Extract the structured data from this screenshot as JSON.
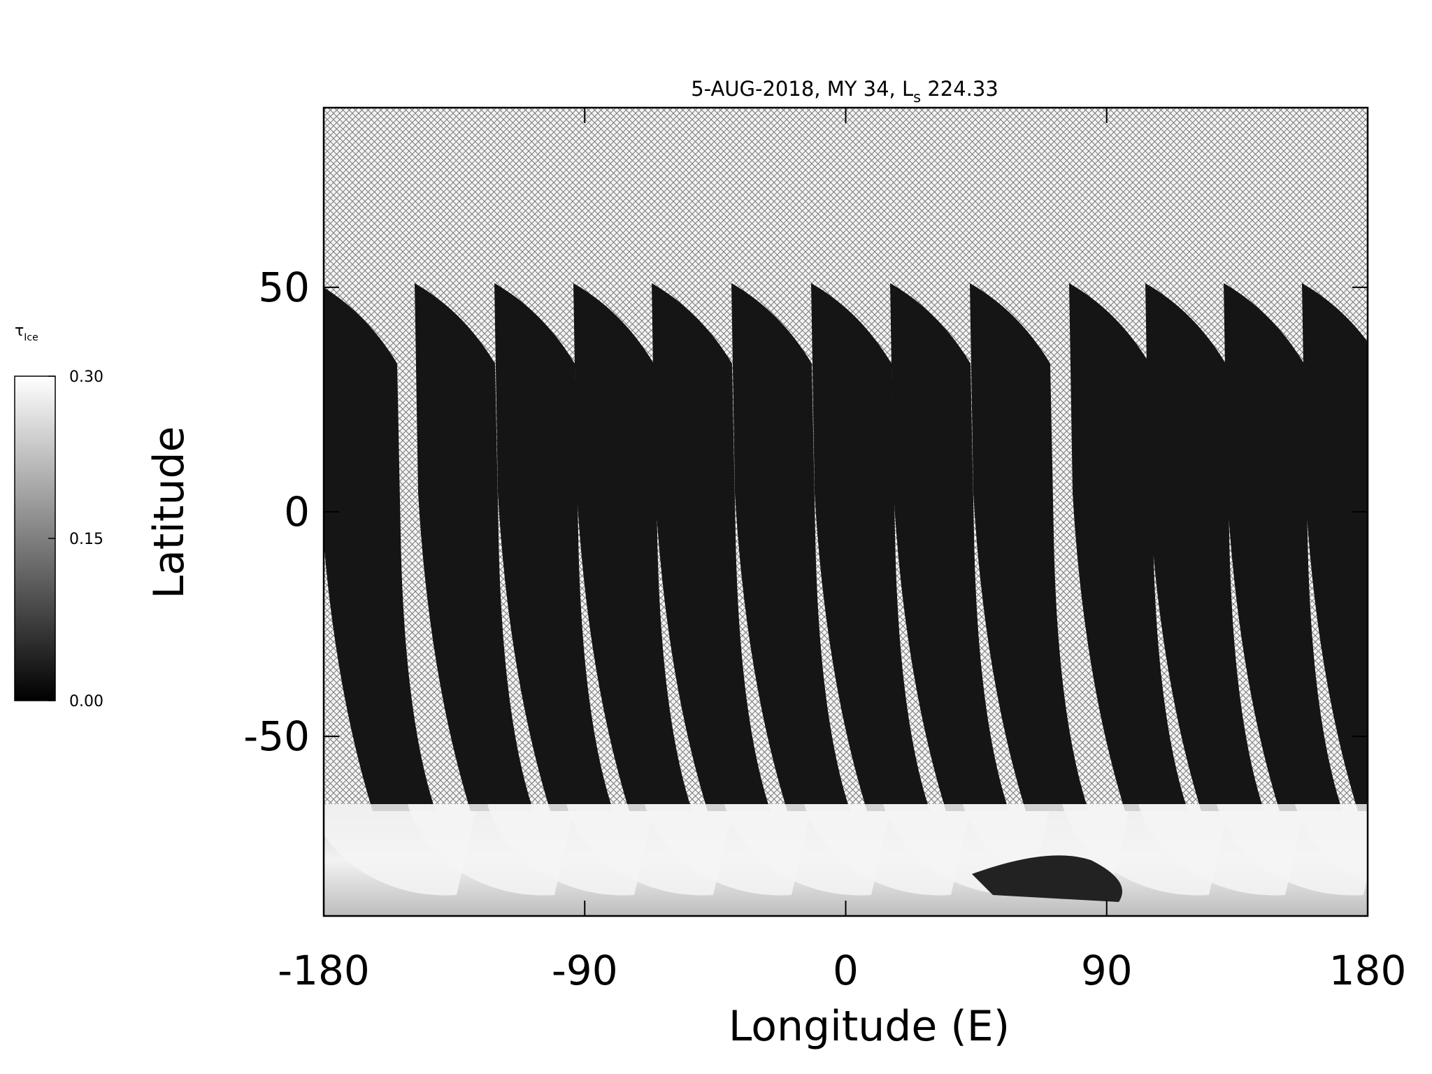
{
  "chart_data": {
    "type": "map",
    "title_parts": [
      "5-AUG-2018, MY 34,  L",
      "s",
      " 224.33"
    ],
    "xlabel": "Longitude (E)",
    "ylabel": "Latitude",
    "xlim": [
      -180,
      180
    ],
    "xticks": [
      -180,
      -90,
      0,
      90,
      180
    ],
    "ylim": [
      -90,
      90
    ],
    "yticks": [
      -50,
      0,
      50
    ],
    "colorbar": {
      "label_parts": [
        "τ",
        "Ice"
      ],
      "lim": [
        0,
        0.3
      ],
      "ticks": [
        {
          "value": 0,
          "label": "0.00"
        },
        {
          "value": 0.15,
          "label": "0.15"
        },
        {
          "value": 0.3,
          "label": "0.30"
        }
      ],
      "colors": [
        "#000000",
        "#ffffff"
      ]
    }
  }
}
